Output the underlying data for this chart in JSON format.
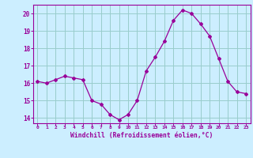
{
  "x": [
    0,
    1,
    2,
    3,
    4,
    5,
    6,
    7,
    8,
    9,
    10,
    11,
    12,
    13,
    14,
    15,
    16,
    17,
    18,
    19,
    20,
    21,
    22,
    23
  ],
  "y": [
    16.1,
    16.0,
    16.2,
    16.4,
    16.3,
    16.2,
    15.0,
    14.8,
    14.2,
    13.9,
    14.2,
    15.0,
    16.7,
    17.5,
    18.4,
    19.6,
    20.2,
    20.0,
    19.4,
    18.7,
    17.4,
    16.1,
    15.5,
    15.4
  ],
  "line_color": "#990099",
  "marker": "D",
  "marker_size": 2,
  "bg_color": "#cceeff",
  "grid_color": "#99cccc",
  "xlabel": "Windchill (Refroidissement éolien,°C)",
  "xlabel_color": "#990099",
  "tick_color": "#990099",
  "ylim": [
    13.7,
    20.5
  ],
  "xlim": [
    -0.5,
    23.5
  ],
  "yticks": [
    14,
    15,
    16,
    17,
    18,
    19,
    20
  ],
  "xticks": [
    0,
    1,
    2,
    3,
    4,
    5,
    6,
    7,
    8,
    9,
    10,
    11,
    12,
    13,
    14,
    15,
    16,
    17,
    18,
    19,
    20,
    21,
    22,
    23
  ],
  "xtick_labels": [
    "0",
    "1",
    "2",
    "3",
    "4",
    "5",
    "6",
    "7",
    "8",
    "9",
    "10",
    "11",
    "12",
    "13",
    "14",
    "15",
    "16",
    "17",
    "18",
    "19",
    "20",
    "21",
    "22",
    "23"
  ]
}
